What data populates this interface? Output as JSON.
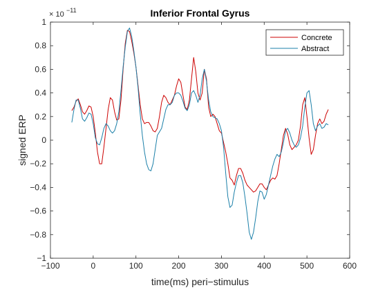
{
  "chart_data": {
    "type": "line",
    "title": "Inferior Frontal Gyrus",
    "xlabel": "time(ms) peri−stimulus",
    "ylabel": "signed ERP",
    "exponent_label": "× 10",
    "exponent_power": "−11",
    "xlim": [
      -100,
      600
    ],
    "ylim": [
      -1,
      1
    ],
    "xticks": [
      -100,
      0,
      100,
      200,
      300,
      400,
      500,
      600
    ],
    "xtick_labels": [
      "−100",
      "0",
      "100",
      "200",
      "300",
      "400",
      "500",
      "600"
    ],
    "yticks": [
      -1,
      -0.8,
      -0.6,
      -0.4,
      -0.2,
      0,
      0.2,
      0.4,
      0.6,
      0.8,
      1
    ],
    "ytick_labels": [
      "−1",
      "−0.8",
      "−0.6",
      "−0.4",
      "−0.2",
      "0",
      "0.2",
      "0.4",
      "0.6",
      "0.8",
      "1"
    ],
    "grid": false,
    "legend_position": "top-right",
    "series": [
      {
        "name": "Concrete",
        "color": "#cc0000",
        "points": [
          [
            -50,
            0.25
          ],
          [
            -45,
            0.28
          ],
          [
            -40,
            0.33
          ],
          [
            -35,
            0.35
          ],
          [
            -30,
            0.3
          ],
          [
            -25,
            0.24
          ],
          [
            -20,
            0.22
          ],
          [
            -15,
            0.25
          ],
          [
            -10,
            0.29
          ],
          [
            -5,
            0.28
          ],
          [
            0,
            0.2
          ],
          [
            5,
            0.06
          ],
          [
            10,
            -0.1
          ],
          [
            15,
            -0.2
          ],
          [
            20,
            -0.2
          ],
          [
            25,
            -0.06
          ],
          [
            30,
            0.1
          ],
          [
            35,
            0.26
          ],
          [
            40,
            0.36
          ],
          [
            45,
            0.34
          ],
          [
            50,
            0.24
          ],
          [
            55,
            0.17
          ],
          [
            60,
            0.18
          ],
          [
            65,
            0.34
          ],
          [
            70,
            0.6
          ],
          [
            75,
            0.82
          ],
          [
            80,
            0.93
          ],
          [
            85,
            0.92
          ],
          [
            90,
            0.84
          ],
          [
            95,
            0.74
          ],
          [
            100,
            0.62
          ],
          [
            105,
            0.46
          ],
          [
            110,
            0.3
          ],
          [
            115,
            0.18
          ],
          [
            120,
            0.14
          ],
          [
            125,
            0.15
          ],
          [
            130,
            0.15
          ],
          [
            135,
            0.12
          ],
          [
            140,
            0.08
          ],
          [
            145,
            0.07
          ],
          [
            150,
            0.1
          ],
          [
            155,
            0.2
          ],
          [
            160,
            0.32
          ],
          [
            165,
            0.38
          ],
          [
            170,
            0.36
          ],
          [
            175,
            0.32
          ],
          [
            180,
            0.3
          ],
          [
            185,
            0.34
          ],
          [
            190,
            0.38
          ],
          [
            195,
            0.46
          ],
          [
            200,
            0.52
          ],
          [
            205,
            0.49
          ],
          [
            210,
            0.38
          ],
          [
            215,
            0.28
          ],
          [
            220,
            0.26
          ],
          [
            225,
            0.34
          ],
          [
            230,
            0.52
          ],
          [
            235,
            0.7
          ],
          [
            240,
            0.58
          ],
          [
            245,
            0.4
          ],
          [
            250,
            0.34
          ],
          [
            255,
            0.4
          ],
          [
            260,
            0.6
          ],
          [
            265,
            0.52
          ],
          [
            270,
            0.28
          ],
          [
            275,
            0.2
          ],
          [
            280,
            0.22
          ],
          [
            285,
            0.2
          ],
          [
            290,
            0.14
          ],
          [
            295,
            0.08
          ],
          [
            300,
            0.06
          ],
          [
            305,
            -0.02
          ],
          [
            310,
            -0.1
          ],
          [
            315,
            -0.2
          ],
          [
            320,
            -0.32
          ],
          [
            325,
            -0.34
          ],
          [
            330,
            -0.38
          ],
          [
            335,
            -0.3
          ],
          [
            340,
            -0.24
          ],
          [
            345,
            -0.24
          ],
          [
            350,
            -0.28
          ],
          [
            355,
            -0.34
          ],
          [
            360,
            -0.38
          ],
          [
            365,
            -0.4
          ],
          [
            370,
            -0.42
          ],
          [
            375,
            -0.44
          ],
          [
            380,
            -0.43
          ],
          [
            385,
            -0.4
          ],
          [
            390,
            -0.37
          ],
          [
            395,
            -0.37
          ],
          [
            400,
            -0.4
          ],
          [
            405,
            -0.42
          ],
          [
            410,
            -0.38
          ],
          [
            415,
            -0.34
          ],
          [
            420,
            -0.32
          ],
          [
            425,
            -0.33
          ],
          [
            430,
            -0.3
          ],
          [
            435,
            -0.2
          ],
          [
            440,
            -0.08
          ],
          [
            445,
            0.04
          ],
          [
            450,
            0.1
          ],
          [
            455,
            0.05
          ],
          [
            460,
            -0.04
          ],
          [
            465,
            -0.08
          ],
          [
            470,
            -0.06
          ],
          [
            475,
            -0.04
          ],
          [
            480,
            0.0
          ],
          [
            485,
            0.12
          ],
          [
            490,
            0.3
          ],
          [
            495,
            0.36
          ],
          [
            500,
            0.2
          ],
          [
            505,
            0.02
          ],
          [
            510,
            -0.12
          ],
          [
            515,
            -0.08
          ],
          [
            520,
            0.04
          ],
          [
            525,
            0.14
          ],
          [
            530,
            0.18
          ],
          [
            535,
            0.14
          ],
          [
            540,
            0.16
          ],
          [
            545,
            0.22
          ],
          [
            550,
            0.26
          ]
        ]
      },
      {
        "name": "Abstract",
        "color": "#1a7fa8",
        "points": [
          [
            -50,
            0.15
          ],
          [
            -45,
            0.26
          ],
          [
            -40,
            0.34
          ],
          [
            -35,
            0.34
          ],
          [
            -30,
            0.27
          ],
          [
            -25,
            0.18
          ],
          [
            -20,
            0.16
          ],
          [
            -15,
            0.19
          ],
          [
            -10,
            0.23
          ],
          [
            -5,
            0.22
          ],
          [
            0,
            0.14
          ],
          [
            5,
            0.02
          ],
          [
            10,
            -0.03
          ],
          [
            15,
            -0.04
          ],
          [
            20,
            0.02
          ],
          [
            25,
            0.1
          ],
          [
            30,
            0.14
          ],
          [
            35,
            0.12
          ],
          [
            40,
            0.08
          ],
          [
            45,
            0.06
          ],
          [
            50,
            0.08
          ],
          [
            55,
            0.14
          ],
          [
            60,
            0.24
          ],
          [
            65,
            0.42
          ],
          [
            70,
            0.62
          ],
          [
            75,
            0.79
          ],
          [
            80,
            0.92
          ],
          [
            85,
            0.95
          ],
          [
            90,
            0.88
          ],
          [
            95,
            0.76
          ],
          [
            100,
            0.62
          ],
          [
            105,
            0.44
          ],
          [
            110,
            0.22
          ],
          [
            115,
            0.04
          ],
          [
            120,
            -0.1
          ],
          [
            125,
            -0.2
          ],
          [
            130,
            -0.25
          ],
          [
            135,
            -0.26
          ],
          [
            140,
            -0.2
          ],
          [
            145,
            -0.08
          ],
          [
            150,
            0.04
          ],
          [
            155,
            0.07
          ],
          [
            160,
            0.1
          ],
          [
            165,
            0.18
          ],
          [
            170,
            0.26
          ],
          [
            175,
            0.3
          ],
          [
            180,
            0.3
          ],
          [
            185,
            0.32
          ],
          [
            190,
            0.38
          ],
          [
            195,
            0.4
          ],
          [
            200,
            0.4
          ],
          [
            205,
            0.38
          ],
          [
            210,
            0.33
          ],
          [
            215,
            0.27
          ],
          [
            220,
            0.25
          ],
          [
            225,
            0.3
          ],
          [
            230,
            0.4
          ],
          [
            235,
            0.42
          ],
          [
            240,
            0.38
          ],
          [
            245,
            0.32
          ],
          [
            250,
            0.38
          ],
          [
            255,
            0.52
          ],
          [
            260,
            0.6
          ],
          [
            265,
            0.5
          ],
          [
            270,
            0.34
          ],
          [
            275,
            0.24
          ],
          [
            280,
            0.2
          ],
          [
            285,
            0.19
          ],
          [
            290,
            0.18
          ],
          [
            295,
            0.14
          ],
          [
            300,
            0.08
          ],
          [
            305,
            -0.06
          ],
          [
            310,
            -0.28
          ],
          [
            315,
            -0.48
          ],
          [
            320,
            -0.57
          ],
          [
            325,
            -0.55
          ],
          [
            330,
            -0.44
          ],
          [
            335,
            -0.36
          ],
          [
            340,
            -0.3
          ],
          [
            345,
            -0.3
          ],
          [
            350,
            -0.36
          ],
          [
            355,
            -0.48
          ],
          [
            360,
            -0.62
          ],
          [
            365,
            -0.78
          ],
          [
            370,
            -0.84
          ],
          [
            375,
            -0.78
          ],
          [
            380,
            -0.66
          ],
          [
            385,
            -0.52
          ],
          [
            390,
            -0.43
          ],
          [
            395,
            -0.44
          ],
          [
            400,
            -0.5
          ],
          [
            405,
            -0.46
          ],
          [
            410,
            -0.38
          ],
          [
            415,
            -0.3
          ],
          [
            420,
            -0.22
          ],
          [
            425,
            -0.16
          ],
          [
            430,
            -0.12
          ],
          [
            435,
            -0.14
          ],
          [
            440,
            -0.1
          ],
          [
            445,
            -0.02
          ],
          [
            450,
            0.08
          ],
          [
            455,
            0.1
          ],
          [
            460,
            0.06
          ],
          [
            465,
            0.0
          ],
          [
            470,
            -0.04
          ],
          [
            475,
            -0.06
          ],
          [
            480,
            -0.04
          ],
          [
            485,
            0.02
          ],
          [
            490,
            0.12
          ],
          [
            495,
            0.28
          ],
          [
            500,
            0.4
          ],
          [
            505,
            0.42
          ],
          [
            510,
            0.3
          ],
          [
            515,
            0.14
          ],
          [
            520,
            0.08
          ],
          [
            525,
            0.12
          ],
          [
            530,
            0.14
          ],
          [
            535,
            0.1
          ],
          [
            540,
            0.11
          ],
          [
            545,
            0.14
          ],
          [
            550,
            0.13
          ]
        ]
      }
    ]
  }
}
